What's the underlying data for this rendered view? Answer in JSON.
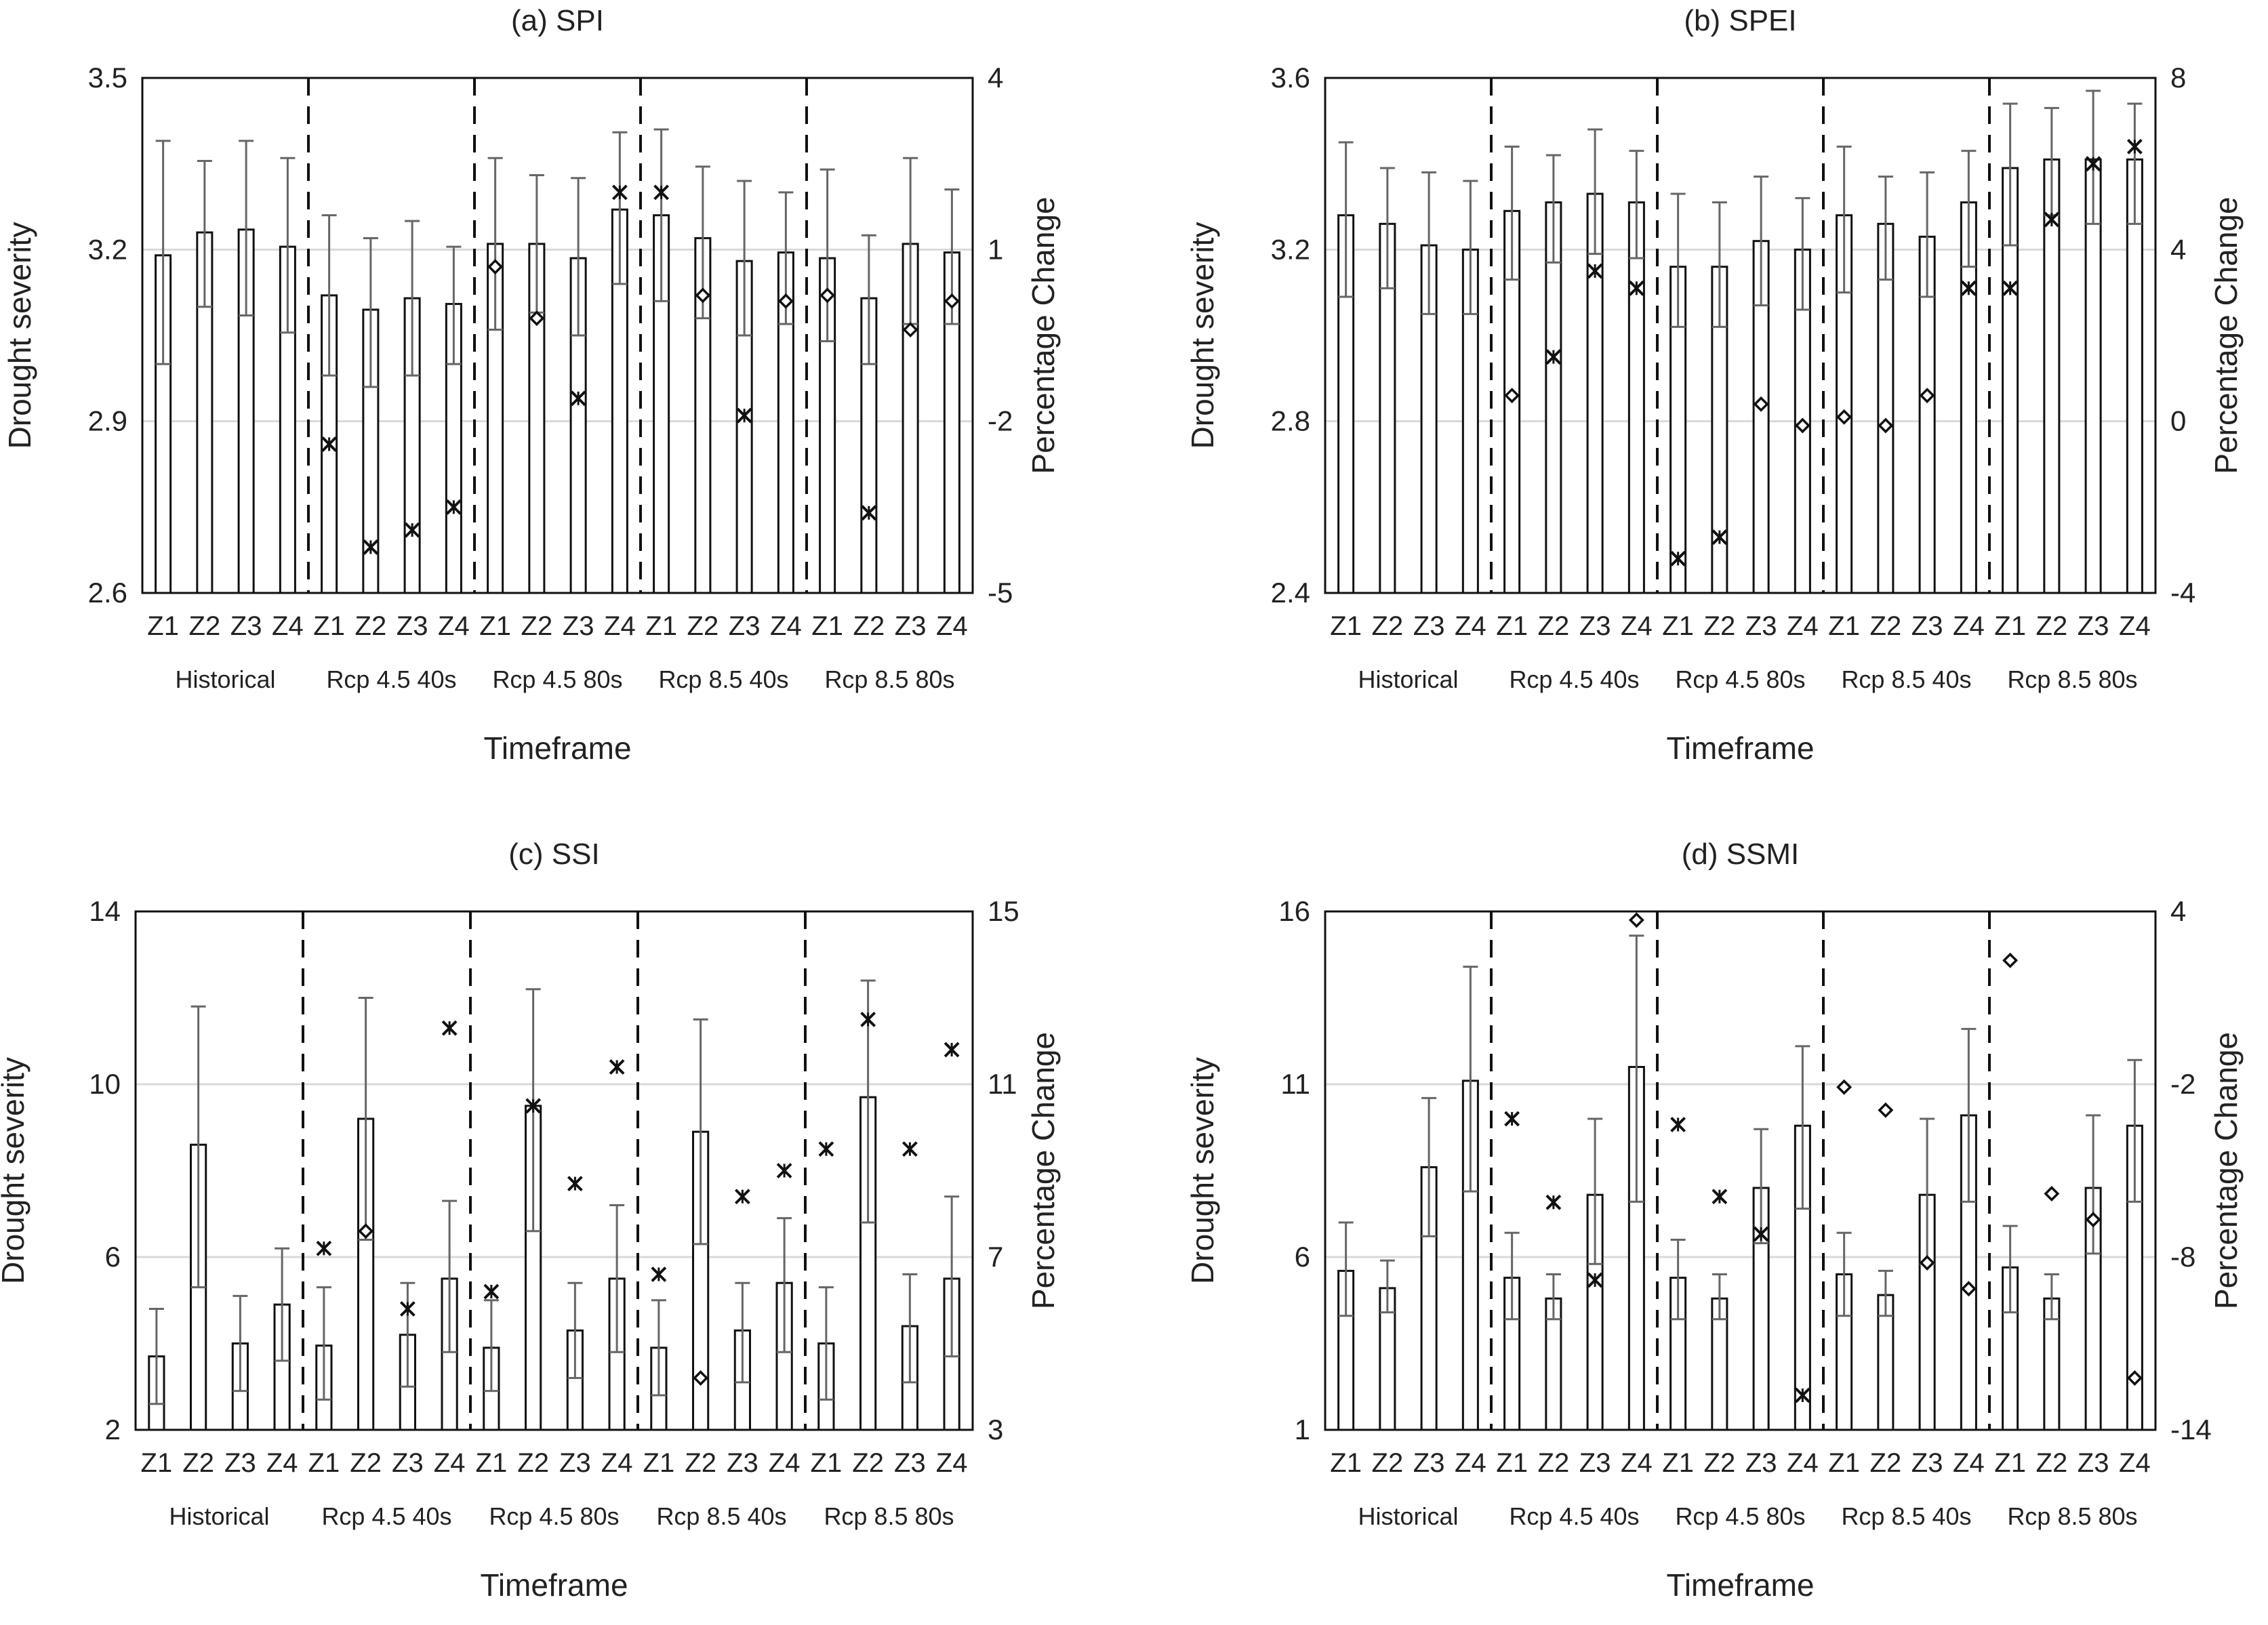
{
  "chart_data": [
    {
      "type": "bar",
      "title": "(a) SPI",
      "xlabel": "Timeframe",
      "ylabel": "Drought severity",
      "y2label": "Percentage Change",
      "ylim": [
        2.6,
        3.5
      ],
      "yticks": [
        "2.6",
        "2.9",
        "3.2",
        "3.5"
      ],
      "y2lim": [
        -5,
        4
      ],
      "y2ticks": [
        "-5",
        "-2",
        "1",
        "4"
      ],
      "groups": [
        "Historical",
        "Rcp 4.5 40s",
        "Rcp 4.5 80s",
        "Rcp 8.5 40s",
        "Rcp 8.5 80s"
      ],
      "categories": [
        "Z1",
        "Z2",
        "Z3",
        "Z4",
        "Z1",
        "Z2",
        "Z3",
        "Z4",
        "Z1",
        "Z2",
        "Z3",
        "Z4",
        "Z1",
        "Z2",
        "Z3",
        "Z4",
        "Z1",
        "Z2",
        "Z3",
        "Z4"
      ],
      "values": [
        3.19,
        3.23,
        3.235,
        3.205,
        3.12,
        3.095,
        3.115,
        3.105,
        3.21,
        3.21,
        3.185,
        3.27,
        3.26,
        3.22,
        3.18,
        3.195,
        3.185,
        3.115,
        3.21,
        3.195
      ],
      "error_low": [
        3.0,
        3.1,
        3.085,
        3.055,
        2.98,
        2.96,
        2.98,
        3.0,
        3.06,
        3.09,
        3.05,
        3.14,
        3.11,
        3.08,
        3.05,
        3.07,
        3.04,
        3.0,
        3.07,
        3.07
      ],
      "error_high": [
        3.39,
        3.355,
        3.39,
        3.36,
        3.26,
        3.22,
        3.25,
        3.205,
        3.36,
        3.33,
        3.325,
        3.405,
        3.41,
        3.345,
        3.32,
        3.3,
        3.34,
        3.225,
        3.36,
        3.305
      ],
      "percent_change": [
        null,
        null,
        null,
        null,
        -2.4,
        -4.2,
        -3.9,
        -3.5,
        0.7,
        -0.2,
        -1.6,
        2.0,
        2.0,
        0.2,
        -1.9,
        0.1,
        0.2,
        -3.6,
        -0.4,
        0.1
      ],
      "percent_marker": [
        null,
        null,
        null,
        null,
        "x",
        "x",
        "x",
        "x",
        "o",
        "o",
        "x",
        "x",
        "x",
        "o",
        "x",
        "o",
        "o",
        "x",
        "o",
        "o"
      ]
    },
    {
      "type": "bar",
      "title": "(b) SPEI",
      "xlabel": "Timeframe",
      "ylabel": "Drought severity",
      "y2label": "Percentage Change",
      "ylim": [
        2.4,
        3.6
      ],
      "yticks": [
        "2.4",
        "2.8",
        "3.2",
        "3.6"
      ],
      "y2lim": [
        -4,
        8
      ],
      "y2ticks": [
        "-4",
        "0",
        "4",
        "8"
      ],
      "groups": [
        "Historical",
        "Rcp 4.5 40s",
        "Rcp 4.5 80s",
        "Rcp 8.5 40s",
        "Rcp 8.5 80s"
      ],
      "categories": [
        "Z1",
        "Z2",
        "Z3",
        "Z4",
        "Z1",
        "Z2",
        "Z3",
        "Z4",
        "Z1",
        "Z2",
        "Z3",
        "Z4",
        "Z1",
        "Z2",
        "Z3",
        "Z4",
        "Z1",
        "Z2",
        "Z3",
        "Z4"
      ],
      "values": [
        3.28,
        3.26,
        3.21,
        3.2,
        3.29,
        3.31,
        3.33,
        3.31,
        3.16,
        3.16,
        3.22,
        3.2,
        3.28,
        3.26,
        3.23,
        3.31,
        3.39,
        3.41,
        3.41,
        3.41
      ],
      "error_low": [
        3.09,
        3.11,
        3.05,
        3.05,
        3.13,
        3.17,
        3.19,
        3.18,
        3.02,
        3.02,
        3.07,
        3.06,
        3.1,
        3.13,
        3.09,
        3.16,
        3.21,
        3.28,
        3.26,
        3.26
      ],
      "error_high": [
        3.45,
        3.39,
        3.38,
        3.36,
        3.44,
        3.42,
        3.48,
        3.43,
        3.33,
        3.31,
        3.37,
        3.32,
        3.44,
        3.37,
        3.38,
        3.43,
        3.54,
        3.53,
        3.57,
        3.54
      ],
      "percent_change": [
        null,
        null,
        null,
        null,
        0.6,
        1.5,
        3.5,
        3.1,
        -3.2,
        -2.7,
        0.4,
        -0.1,
        0.1,
        -0.1,
        0.6,
        3.1,
        3.1,
        4.7,
        6.0,
        6.4
      ],
      "percent_marker": [
        null,
        null,
        null,
        null,
        "o",
        "x",
        "x",
        "x",
        "x",
        "x",
        "o",
        "o",
        "o",
        "o",
        "o",
        "x",
        "x",
        "x",
        "x",
        "x"
      ]
    },
    {
      "type": "bar",
      "title": "(c) SSI",
      "xlabel": "Timeframe",
      "ylabel": "Drought severity",
      "y2label": "Percentage Change",
      "ylim": [
        2,
        14
      ],
      "yticks": [
        "2",
        "6",
        "10",
        "14"
      ],
      "y2lim": [
        3,
        15
      ],
      "y2ticks": [
        "3",
        "7",
        "11",
        "15"
      ],
      "groups": [
        "Historical",
        "Rcp 4.5 40s",
        "Rcp 4.5 80s",
        "Rcp 8.5 40s",
        "Rcp 8.5 80s"
      ],
      "categories": [
        "Z1",
        "Z2",
        "Z3",
        "Z4",
        "Z1",
        "Z2",
        "Z3",
        "Z4",
        "Z1",
        "Z2",
        "Z3",
        "Z4",
        "Z1",
        "Z2",
        "Z3",
        "Z4",
        "Z1",
        "Z2",
        "Z3",
        "Z4"
      ],
      "values": [
        3.7,
        8.6,
        4.0,
        4.9,
        3.95,
        9.2,
        4.2,
        5.5,
        3.9,
        9.5,
        4.3,
        5.5,
        3.9,
        8.9,
        4.3,
        5.4,
        4.0,
        9.7,
        4.4,
        5.5
      ],
      "error_low": [
        2.6,
        5.3,
        2.9,
        3.6,
        2.7,
        6.4,
        3.0,
        3.8,
        2.9,
        6.6,
        3.2,
        3.8,
        2.8,
        6.3,
        3.1,
        3.8,
        2.7,
        6.8,
        3.1,
        3.7
      ],
      "error_high": [
        4.8,
        11.8,
        5.1,
        6.2,
        5.3,
        12.0,
        5.4,
        7.3,
        5.0,
        12.2,
        5.4,
        7.2,
        5.0,
        11.5,
        5.4,
        6.9,
        5.3,
        12.4,
        5.6,
        7.4
      ],
      "percent_change": [
        null,
        null,
        null,
        null,
        7.2,
        7.6,
        5.8,
        12.3,
        6.2,
        10.5,
        8.7,
        11.4,
        6.6,
        4.2,
        8.4,
        9.0,
        9.5,
        12.5,
        9.5,
        11.8
      ],
      "percent_marker": [
        null,
        null,
        null,
        null,
        "x",
        "o",
        "x",
        "x",
        "x",
        "x",
        "x",
        "x",
        "x",
        "o",
        "x",
        "x",
        "x",
        "x",
        "x",
        "x"
      ]
    },
    {
      "type": "bar",
      "title": "(d) SSMI",
      "xlabel": "Timeframe",
      "ylabel": "Drought severity",
      "y2label": "Percentage Change",
      "ylim": [
        1,
        16
      ],
      "yticks": [
        "1",
        "6",
        "11",
        "16"
      ],
      "y2lim": [
        -14,
        4
      ],
      "y2ticks": [
        "-14",
        "-8",
        "-2",
        "4"
      ],
      "groups": [
        "Historical",
        "Rcp 4.5 40s",
        "Rcp 4.5 80s",
        "Rcp 8.5 40s",
        "Rcp 8.5 80s"
      ],
      "categories": [
        "Z1",
        "Z2",
        "Z3",
        "Z4",
        "Z1",
        "Z2",
        "Z3",
        "Z4",
        "Z1",
        "Z2",
        "Z3",
        "Z4",
        "Z1",
        "Z2",
        "Z3",
        "Z4",
        "Z1",
        "Z2",
        "Z3",
        "Z4"
      ],
      "values": [
        5.6,
        5.1,
        8.6,
        11.1,
        5.4,
        4.8,
        7.8,
        11.5,
        5.4,
        4.8,
        8.0,
        9.8,
        5.5,
        4.9,
        7.8,
        10.1,
        5.7,
        4.8,
        8.0,
        9.8
      ],
      "error_low": [
        4.3,
        4.4,
        6.6,
        7.9,
        4.2,
        4.2,
        5.8,
        7.6,
        4.2,
        4.2,
        6.4,
        7.4,
        4.3,
        4.3,
        5.8,
        7.6,
        4.4,
        4.2,
        6.1,
        7.6
      ],
      "error_high": [
        7.0,
        5.9,
        10.6,
        14.4,
        6.7,
        5.5,
        10.0,
        15.3,
        6.5,
        5.5,
        9.7,
        12.1,
        6.7,
        5.6,
        10.0,
        12.6,
        6.9,
        5.5,
        10.1,
        11.7
      ],
      "percent_change": [
        null,
        null,
        null,
        null,
        -3.2,
        -6.1,
        -8.8,
        3.7,
        -3.4,
        -5.9,
        -7.2,
        -12.8,
        -2.1,
        -2.9,
        -8.2,
        -9.1,
        2.3,
        -5.8,
        -6.7,
        -12.2
      ],
      "percent_marker": [
        null,
        null,
        null,
        null,
        "x",
        "x",
        "x",
        "o",
        "x",
        "x",
        "x",
        "x",
        "o",
        "o",
        "o",
        "o",
        "o",
        "o",
        "o",
        "o"
      ]
    }
  ]
}
